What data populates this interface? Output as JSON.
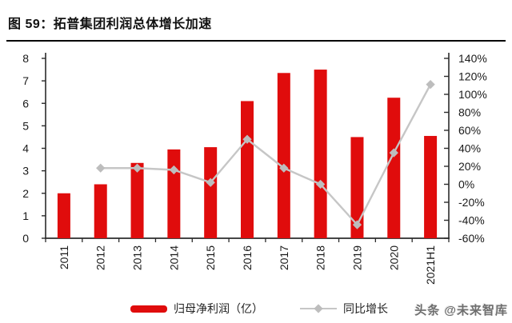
{
  "title": "图  59：拓普集团利润总体增长加速",
  "watermark": "头条 @未来智库",
  "colors": {
    "bar": "#e00c0c",
    "line": "#c6c6c6",
    "marker": "#bdbdbd",
    "axis": "#2b2b2b",
    "text": "#1a1a1a"
  },
  "chart_data": {
    "type": "bar+line combo",
    "title": "拓普集团利润总体增长加速",
    "categories": [
      "2011",
      "2012",
      "2013",
      "2014",
      "2015",
      "2016",
      "2017",
      "2018",
      "2019",
      "2020",
      "2021H1"
    ],
    "series": [
      {
        "name": "归母净利润（亿）",
        "type": "bar",
        "axis": "left",
        "color": "#e00c0c",
        "values": [
          2.0,
          2.4,
          3.35,
          3.95,
          4.05,
          6.1,
          7.35,
          7.5,
          4.5,
          6.25,
          4.55
        ]
      },
      {
        "name": "同比增长",
        "type": "line",
        "axis": "right",
        "color": "#c6c6c6",
        "values": [
          null,
          18,
          18,
          16,
          2,
          50,
          18,
          0,
          -45,
          35,
          111
        ]
      }
    ],
    "left_axis": {
      "min": 0,
      "max": 8,
      "step": 1,
      "tick_labels": [
        "0",
        "1",
        "2",
        "3",
        "4",
        "5",
        "6",
        "7",
        "8"
      ]
    },
    "right_axis": {
      "min": -60,
      "max": 140,
      "step": 20,
      "format": "percent",
      "tick_labels": [
        "-60%",
        "-40%",
        "-20%",
        "0%",
        "20%",
        "40%",
        "60%",
        "80%",
        "100%",
        "120%",
        "140%"
      ]
    },
    "grid": false,
    "legend_position": "bottom",
    "x_tick_label_rotation": -90
  }
}
